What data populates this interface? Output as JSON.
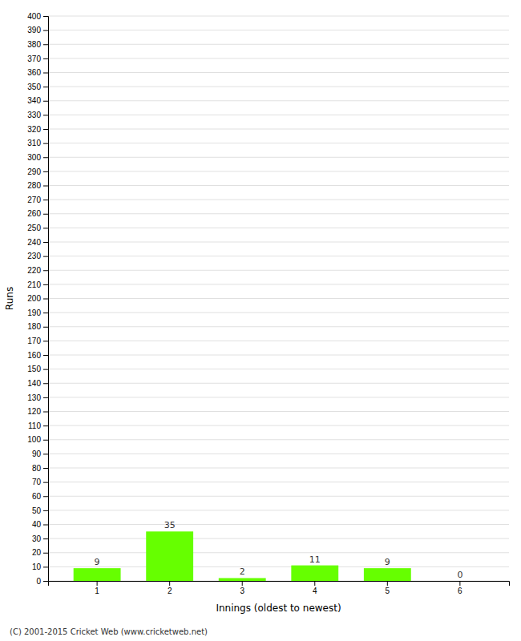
{
  "chart_data": {
    "type": "bar",
    "categories": [
      "1",
      "2",
      "3",
      "4",
      "5",
      "6"
    ],
    "values": [
      9,
      35,
      2,
      11,
      9,
      0
    ],
    "color": "#66ff00",
    "xlabel": "Innings (oldest to newest)",
    "ylabel": "Runs",
    "ylim": [
      0,
      400
    ],
    "yticks": [
      0,
      10,
      20,
      30,
      40,
      50,
      60,
      70,
      80,
      90,
      100,
      110,
      120,
      130,
      140,
      150,
      160,
      170,
      180,
      190,
      200,
      210,
      220,
      230,
      240,
      250,
      260,
      270,
      280,
      290,
      300,
      310,
      320,
      330,
      340,
      350,
      360,
      370,
      380,
      390,
      400
    ],
    "grid": true,
    "data_labels": true,
    "annotations": [
      "(C) 2001-2015 Cricket Web (www.cricketweb.net)"
    ]
  }
}
